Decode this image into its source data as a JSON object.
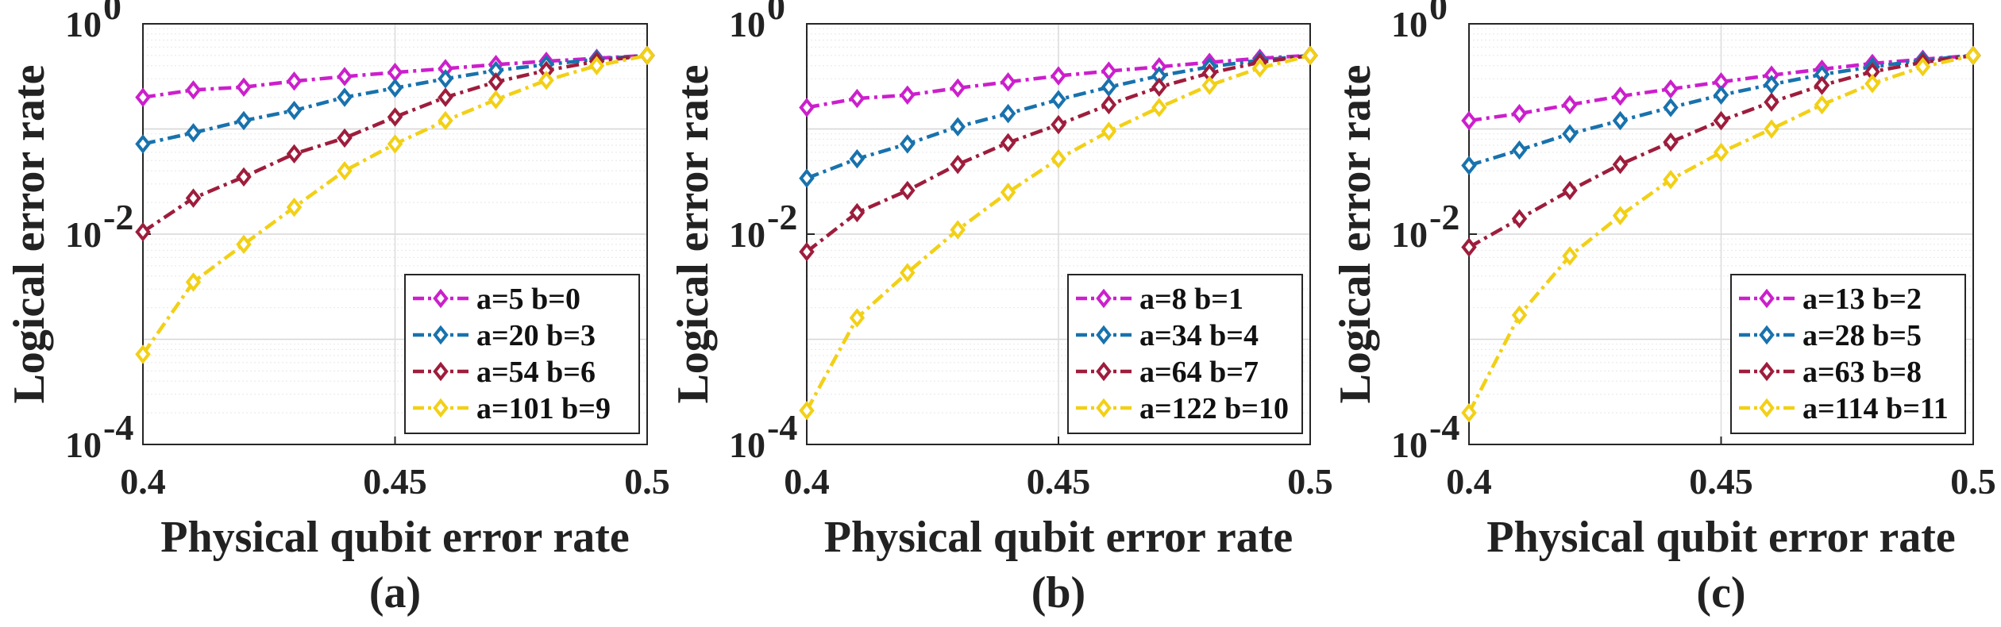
{
  "colors": [
    "#cc1fcc",
    "#1872ad",
    "#9e1d3c",
    "#f2d016"
  ],
  "chart_data": [
    {
      "type": "line",
      "caption": "(a)",
      "xlabel": "Physical qubit error rate",
      "ylabel": "Logical error rate",
      "yscale": "log",
      "xlim": [
        0.4,
        0.5
      ],
      "ylim": [
        0.0001,
        1
      ],
      "xticks": [
        0.4,
        0.45,
        0.5
      ],
      "xtick_labels": [
        "0.4",
        "0.45",
        "0.5"
      ],
      "yticks": [
        0.0001,
        0.01,
        1
      ],
      "ytick_base": [
        "10",
        "10",
        "10"
      ],
      "ytick_exp": [
        "-4",
        "-2",
        "0"
      ],
      "legend_position": "bottom-right",
      "x": [
        0.4,
        0.41,
        0.42,
        0.43,
        0.44,
        0.45,
        0.46,
        0.47,
        0.48,
        0.49,
        0.5
      ],
      "series": [
        {
          "name": "a=5 b=0",
          "values": [
            0.2,
            0.235,
            0.25,
            0.285,
            0.315,
            0.345,
            0.375,
            0.41,
            0.44,
            0.47,
            0.5
          ]
        },
        {
          "name": "a=20 b=3",
          "values": [
            0.072,
            0.092,
            0.12,
            0.15,
            0.2,
            0.245,
            0.3,
            0.36,
            0.41,
            0.46,
            0.5
          ]
        },
        {
          "name": "a=54 b=6",
          "values": [
            0.0105,
            0.022,
            0.035,
            0.058,
            0.082,
            0.13,
            0.2,
            0.28,
            0.36,
            0.44,
            0.5
          ]
        },
        {
          "name": "a=101 b=9",
          "values": [
            0.00072,
            0.0035,
            0.008,
            0.018,
            0.04,
            0.072,
            0.12,
            0.19,
            0.29,
            0.4,
            0.5
          ]
        }
      ]
    },
    {
      "type": "line",
      "caption": "(b)",
      "xlabel": "Physical qubit error rate",
      "ylabel": "Logical error rate",
      "yscale": "log",
      "xlim": [
        0.4,
        0.5
      ],
      "ylim": [
        0.0001,
        1
      ],
      "xticks": [
        0.4,
        0.45,
        0.5
      ],
      "xtick_labels": [
        "0.4",
        "0.45",
        "0.5"
      ],
      "yticks": [
        0.0001,
        0.01,
        1
      ],
      "ytick_base": [
        "10",
        "10",
        "10"
      ],
      "ytick_exp": [
        "-4",
        "-2",
        "0"
      ],
      "legend_position": "bottom-right",
      "x": [
        0.4,
        0.41,
        0.42,
        0.43,
        0.44,
        0.45,
        0.46,
        0.47,
        0.48,
        0.49,
        0.5
      ],
      "series": [
        {
          "name": "a=8 b=1",
          "values": [
            0.16,
            0.195,
            0.21,
            0.245,
            0.28,
            0.32,
            0.355,
            0.39,
            0.43,
            0.47,
            0.5
          ]
        },
        {
          "name": "a=34 b=4",
          "values": [
            0.034,
            0.052,
            0.072,
            0.105,
            0.14,
            0.19,
            0.25,
            0.32,
            0.39,
            0.45,
            0.5
          ]
        },
        {
          "name": "a=64 b=7",
          "values": [
            0.0068,
            0.016,
            0.026,
            0.046,
            0.074,
            0.11,
            0.17,
            0.25,
            0.34,
            0.43,
            0.5
          ]
        },
        {
          "name": "a=122 b=10",
          "values": [
            0.00021,
            0.0016,
            0.0043,
            0.011,
            0.025,
            0.052,
            0.095,
            0.16,
            0.26,
            0.38,
            0.5
          ]
        }
      ]
    },
    {
      "type": "line",
      "caption": "(c)",
      "xlabel": "Physical qubit error rate",
      "ylabel": "Logical error rate",
      "yscale": "log",
      "xlim": [
        0.4,
        0.5
      ],
      "ylim": [
        0.0001,
        1
      ],
      "xticks": [
        0.4,
        0.45,
        0.5
      ],
      "xtick_labels": [
        "0.4",
        "0.45",
        "0.5"
      ],
      "yticks": [
        0.0001,
        0.01,
        1
      ],
      "ytick_base": [
        "10",
        "10",
        "10"
      ],
      "ytick_exp": [
        "-4",
        "-2",
        "0"
      ],
      "legend_position": "bottom-right",
      "x": [
        0.4,
        0.41,
        0.42,
        0.43,
        0.44,
        0.45,
        0.46,
        0.47,
        0.48,
        0.49,
        0.5
      ],
      "series": [
        {
          "name": "a=13 b=2",
          "values": [
            0.12,
            0.14,
            0.17,
            0.205,
            0.24,
            0.28,
            0.325,
            0.37,
            0.42,
            0.46,
            0.5
          ]
        },
        {
          "name": "a=28 b=5",
          "values": [
            0.045,
            0.063,
            0.09,
            0.12,
            0.16,
            0.21,
            0.265,
            0.33,
            0.39,
            0.45,
            0.5
          ]
        },
        {
          "name": "a=63 b=8",
          "values": [
            0.0075,
            0.014,
            0.026,
            0.046,
            0.075,
            0.12,
            0.18,
            0.26,
            0.35,
            0.43,
            0.5
          ]
        },
        {
          "name": "a=114 b=11",
          "values": [
            0.0002,
            0.0017,
            0.0062,
            0.015,
            0.033,
            0.06,
            0.1,
            0.17,
            0.27,
            0.39,
            0.5
          ]
        }
      ]
    }
  ]
}
